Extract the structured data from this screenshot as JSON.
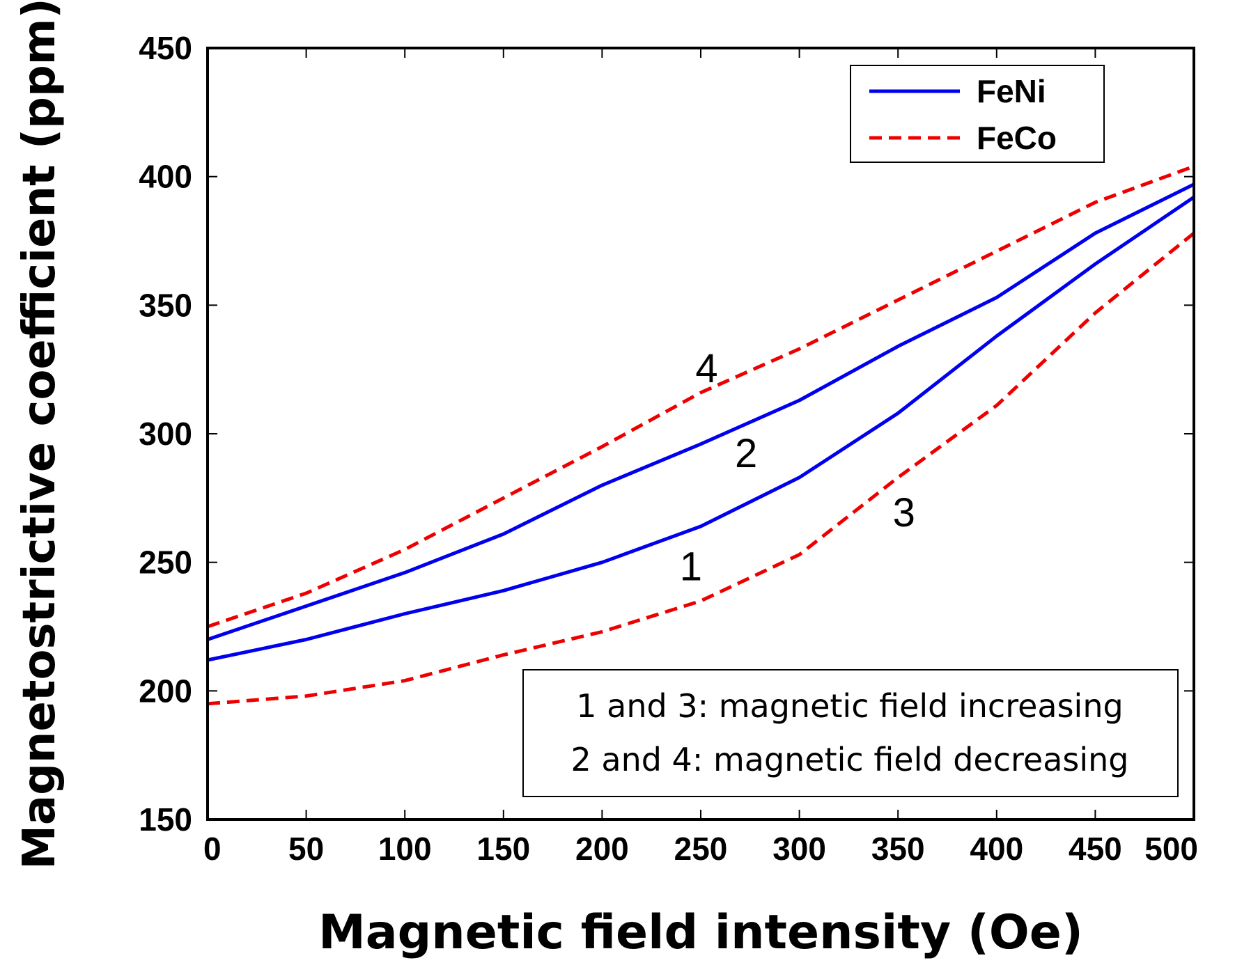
{
  "chart_data": {
    "type": "line",
    "title": "",
    "xlabel": "Magnetic field intensity (Oe)",
    "ylabel": "Magnetostrictive coefficient (ppm)",
    "xlim": [
      0,
      500
    ],
    "ylim": [
      150,
      450
    ],
    "xticks": [
      "0",
      "50",
      "100",
      "150",
      "200",
      "250",
      "300",
      "350",
      "400",
      "450",
      "500"
    ],
    "yticks": [
      "150",
      "200",
      "250",
      "300",
      "350",
      "400",
      "450"
    ],
    "x": [
      0,
      50,
      100,
      150,
      200,
      250,
      300,
      350,
      400,
      450,
      500
    ],
    "series": [
      {
        "id": "1",
        "name": "FeNi",
        "direction": "increasing",
        "color": "#0000ee",
        "dash": "solid",
        "values": [
          212,
          220,
          230,
          239,
          250,
          264,
          283,
          308,
          338,
          366,
          392
        ]
      },
      {
        "id": "2",
        "name": "FeNi",
        "direction": "decreasing",
        "color": "#0000ee",
        "dash": "solid",
        "values": [
          220,
          233,
          246,
          261,
          280,
          296,
          313,
          334,
          353,
          378,
          397
        ]
      },
      {
        "id": "3",
        "name": "FeCo",
        "direction": "increasing",
        "color": "#ee0000",
        "dash": "dashed",
        "values": [
          195,
          198,
          204,
          214,
          223,
          235,
          253,
          283,
          311,
          347,
          378
        ]
      },
      {
        "id": "4",
        "name": "FeCo",
        "direction": "decreasing",
        "color": "#ee0000",
        "dash": "dashed",
        "values": [
          225,
          238,
          255,
          275,
          295,
          316,
          333,
          352,
          371,
          390,
          404
        ]
      }
    ],
    "curve_labels": [
      {
        "text": "1",
        "x": 245,
        "y": 243
      },
      {
        "text": "2",
        "x": 273,
        "y": 287
      },
      {
        "text": "3",
        "x": 353,
        "y": 264
      },
      {
        "text": "4",
        "x": 253,
        "y": 320
      }
    ],
    "legend": {
      "position": "top-right",
      "entries": [
        {
          "label": "FeNi",
          "color": "#0000ee",
          "dash": "solid"
        },
        {
          "label": "FeCo",
          "color": "#ee0000",
          "dash": "dashed"
        }
      ]
    },
    "annotation": {
      "position": "bottom-right",
      "lines": [
        "1 and 3: magnetic field increasing",
        "2 and 4: magnetic field decreasing"
      ]
    },
    "grid": false
  }
}
